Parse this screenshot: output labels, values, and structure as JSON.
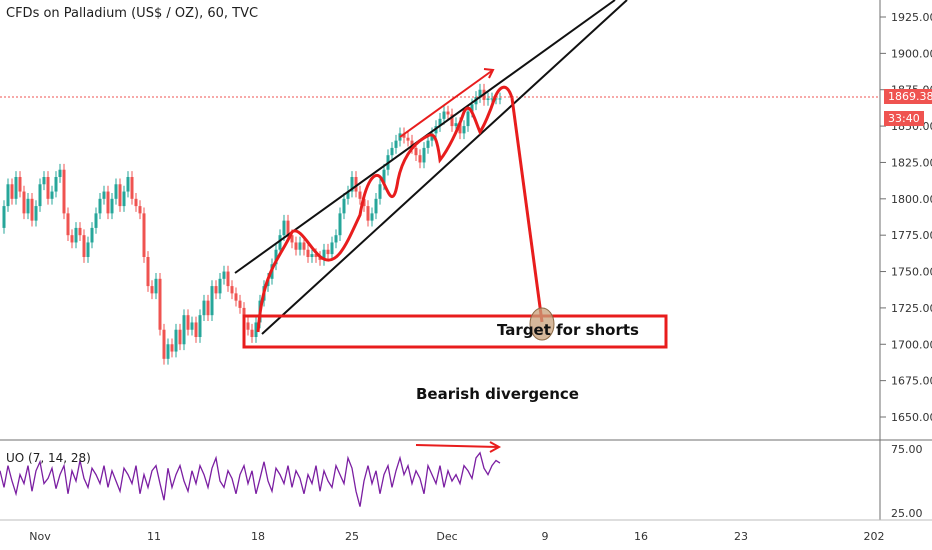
{
  "title": "CFDs on Palladium (US$ / OZ), 60, TVC",
  "indicator": {
    "name": "UO (7, 14, 28)"
  },
  "current_price": "1869.38",
  "countdown": "33:40",
  "annotations": {
    "target": "Target for shorts",
    "divergence": "Bearish divergence"
  },
  "colors": {
    "up": "#26a69a",
    "down": "#ef5350",
    "drawing_red": "#e81d1d",
    "uo_line": "#7b1fa2",
    "trend_line": "#111111"
  },
  "chart_data": {
    "type": "line",
    "price_axis": {
      "ticks": [
        1650,
        1675,
        1700,
        1725,
        1750,
        1775,
        1800,
        1825,
        1850,
        1875,
        1900,
        1925
      ],
      "range": [
        1625,
        1938
      ]
    },
    "time_axis": {
      "labels": [
        "Nov",
        "11",
        "18",
        "25",
        "Dec",
        "9",
        "16",
        "23",
        "202"
      ]
    },
    "indicator_axis": {
      "ticks": [
        75.0,
        25.0
      ]
    },
    "series": [
      {
        "x": [
          0,
          4,
          8,
          12,
          16,
          20,
          24,
          28,
          32,
          36,
          40,
          44,
          48,
          52,
          56,
          60,
          64,
          68,
          72,
          76,
          80,
          84,
          88,
          92,
          96,
          100,
          104,
          108,
          112,
          116,
          120,
          124,
          128,
          132,
          136,
          140,
          144,
          148,
          152,
          156,
          160,
          164,
          168,
          172,
          176,
          180,
          184,
          188,
          192,
          196,
          200,
          204,
          208,
          212,
          216,
          220,
          224,
          228,
          232,
          236,
          240,
          244,
          248,
          252,
          256,
          260,
          264,
          268,
          272,
          276,
          280,
          284,
          288,
          292,
          296,
          300,
          304,
          308,
          312,
          316,
          320,
          324,
          328,
          332,
          336,
          340,
          344,
          348,
          352,
          356,
          360,
          364,
          368,
          372,
          376,
          380,
          384,
          388,
          392,
          396,
          400,
          404,
          408,
          412,
          416,
          420,
          424,
          428,
          432,
          436,
          440,
          444,
          448,
          452,
          456,
          460,
          464,
          468,
          472,
          476,
          480,
          484,
          488,
          492,
          496,
          500
        ],
        "values": [
          1780,
          1795,
          1810,
          1800,
          1815,
          1805,
          1790,
          1800,
          1785,
          1795,
          1810,
          1815,
          1800,
          1805,
          1815,
          1820,
          1790,
          1775,
          1770,
          1780,
          1775,
          1760,
          1770,
          1780,
          1790,
          1800,
          1805,
          1790,
          1800,
          1810,
          1795,
          1805,
          1815,
          1800,
          1795,
          1790,
          1760,
          1740,
          1735,
          1745,
          1710,
          1690,
          1700,
          1695,
          1710,
          1700,
          1720,
          1710,
          1715,
          1705,
          1720,
          1730,
          1720,
          1740,
          1735,
          1745,
          1750,
          1740,
          1735,
          1730,
          1725,
          1715,
          1710,
          1705,
          1715,
          1730,
          1740,
          1745,
          1755,
          1765,
          1775,
          1785,
          1775,
          1770,
          1765,
          1770,
          1765,
          1760,
          1762,
          1760,
          1758,
          1765,
          1762,
          1770,
          1775,
          1790,
          1800,
          1805,
          1815,
          1805,
          1800,
          1795,
          1785,
          1790,
          1800,
          1810,
          1820,
          1830,
          1835,
          1840,
          1845,
          1842,
          1840,
          1835,
          1830,
          1825,
          1835,
          1840,
          1845,
          1850,
          1855,
          1860,
          1858,
          1850,
          1852,
          1845,
          1850,
          1860,
          1865,
          1870,
          1875,
          1868,
          1869,
          1869,
          1869,
          1869
        ]
      },
      {
        "name": "UO (7, 14, 28)",
        "x": [
          0,
          4,
          8,
          12,
          16,
          20,
          24,
          28,
          32,
          36,
          40,
          44,
          48,
          52,
          56,
          60,
          64,
          68,
          72,
          76,
          80,
          84,
          88,
          92,
          96,
          100,
          104,
          108,
          112,
          116,
          120,
          124,
          128,
          132,
          136,
          140,
          144,
          148,
          152,
          156,
          160,
          164,
          168,
          172,
          176,
          180,
          184,
          188,
          192,
          196,
          200,
          204,
          208,
          212,
          216,
          220,
          224,
          228,
          232,
          236,
          240,
          244,
          248,
          252,
          256,
          260,
          264,
          268,
          272,
          276,
          280,
          284,
          288,
          292,
          296,
          300,
          304,
          308,
          312,
          316,
          320,
          324,
          328,
          332,
          336,
          340,
          344,
          348,
          352,
          356,
          360,
          364,
          368,
          372,
          376,
          380,
          384,
          388,
          392,
          396,
          400,
          404,
          408,
          412,
          416,
          420,
          424,
          428,
          432,
          436,
          440,
          444,
          448,
          452,
          456,
          460,
          464,
          468,
          472,
          476,
          480,
          484,
          488,
          492,
          496,
          500
        ],
        "values": [
          58,
          45,
          62,
          50,
          40,
          55,
          48,
          62,
          42,
          58,
          65,
          48,
          52,
          60,
          44,
          55,
          62,
          40,
          58,
          50,
          66,
          52,
          45,
          60,
          55,
          48,
          62,
          45,
          58,
          50,
          42,
          60,
          55,
          48,
          62,
          40,
          55,
          45,
          58,
          62,
          48,
          35,
          60,
          45,
          55,
          62,
          50,
          42,
          58,
          48,
          62,
          55,
          45,
          60,
          68,
          50,
          45,
          58,
          52,
          40,
          55,
          62,
          48,
          58,
          40,
          52,
          65,
          50,
          42,
          60,
          55,
          48,
          62,
          45,
          58,
          52,
          40,
          55,
          48,
          62,
          42,
          58,
          50,
          45,
          62,
          55,
          48,
          68,
          60,
          42,
          30,
          50,
          62,
          48,
          58,
          40,
          55,
          62,
          45,
          58,
          68,
          55,
          62,
          48,
          58,
          52,
          40,
          62,
          55,
          48,
          62,
          45,
          58,
          50,
          55,
          48,
          62,
          58,
          52,
          68,
          72,
          60,
          55,
          62,
          66,
          64
        ]
      }
    ]
  }
}
